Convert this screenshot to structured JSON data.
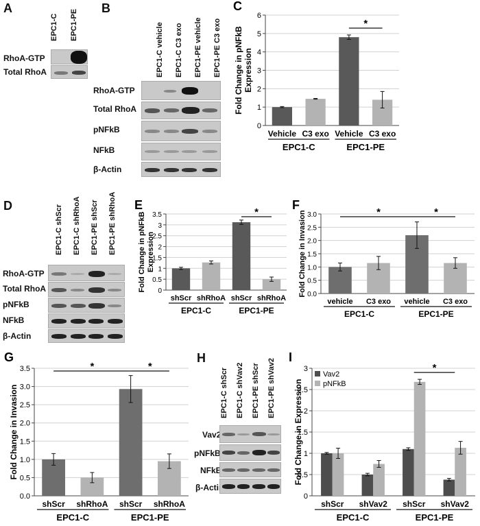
{
  "panels": {
    "A": {
      "label": "A",
      "lanes": [
        "EPC1-C",
        "EPC1-PE"
      ],
      "rows": [
        "RhoA-GTP",
        "Total RhoA"
      ]
    },
    "B": {
      "label": "B",
      "lanes": [
        "EPC1-C vehicle",
        "EPC1-C C3 exo",
        "EPC1-PE vehicle",
        "EPC1-PE C3 exo"
      ],
      "rows": [
        "RhoA-GTP",
        "Total RhoA",
        "pNFkB",
        "NFkB",
        "β-Actin"
      ]
    },
    "D": {
      "label": "D",
      "lanes": [
        "EPC1-C shScr",
        "EPC1-C shRhoA",
        "EPC1-PE shScr",
        "EPC1-PE shRhoA"
      ],
      "rows": [
        "RhoA-GTP",
        "Total RhoA",
        "pNFkB",
        "NFkB",
        "β-Actin"
      ]
    },
    "H": {
      "label": "H",
      "lanes": [
        "EPC1-C shScr",
        "EPC1-C shVav2",
        "EPC1-PE shScr",
        "EPC1-PE shVav2"
      ],
      "rows": [
        "Vav2",
        "pNFkB",
        "NFkB",
        "β-Actin"
      ]
    }
  },
  "chart_data": [
    {
      "id": "C",
      "label": "C",
      "type": "bar",
      "ylabel": "Fold Change in pNFkB Expression",
      "ylim": [
        0,
        6
      ],
      "yticks": [
        0,
        1,
        2,
        3,
        4,
        5,
        6
      ],
      "ytick_labels": [
        "0",
        "1",
        "2",
        "3",
        "4",
        "5",
        "6"
      ],
      "categories": [
        "Vehicle",
        "C3 exo",
        "Vehicle",
        "C3 exo"
      ],
      "groups": [
        "EPC1-C",
        "EPC1-PE"
      ],
      "values": [
        1.0,
        1.45,
        4.8,
        1.4
      ],
      "errors": [
        0.03,
        0.02,
        0.12,
        0.45
      ],
      "colors": [
        "#595959",
        "#b3b3b3",
        "#595959",
        "#b3b3b3"
      ],
      "significance": [
        {
          "from": 2,
          "to": 3,
          "mark": "*"
        }
      ],
      "grid": true
    },
    {
      "id": "E",
      "label": "E",
      "type": "bar",
      "ylabel": "Fold Change in pNFkB Expression",
      "ylim": [
        0,
        3.5
      ],
      "yticks": [
        0,
        0.5,
        1,
        1.5,
        2,
        2.5,
        3,
        3.5
      ],
      "ytick_labels": [
        "0",
        "0.5",
        "1",
        "1.5",
        "2",
        "2.5",
        "3",
        "3.5"
      ],
      "categories": [
        "shScr",
        "shRhoA",
        "shScr",
        "shRhoA"
      ],
      "groups": [
        "EPC1-C",
        "EPC1-PE"
      ],
      "values": [
        1.0,
        1.27,
        3.12,
        0.5
      ],
      "errors": [
        0.05,
        0.07,
        0.1,
        0.1
      ],
      "colors": [
        "#595959",
        "#b3b3b3",
        "#595959",
        "#b3b3b3"
      ],
      "significance": [
        {
          "from": 2,
          "to": 3,
          "mark": "*"
        }
      ],
      "grid": true
    },
    {
      "id": "F",
      "label": "F",
      "type": "bar",
      "ylabel": "Fold Change in Invasion",
      "ylim": [
        0,
        3.0
      ],
      "yticks": [
        0,
        0.5,
        1,
        1.5,
        2,
        2.5,
        3
      ],
      "ytick_labels": [
        "0.0",
        "0.5",
        "1.0",
        "1.5",
        "2.0",
        "2.5",
        "3.0"
      ],
      "categories": [
        "vehicle",
        "C3 exo",
        "vehicle",
        "C3 exo"
      ],
      "groups": [
        "EPC1-C",
        "EPC1-PE"
      ],
      "values": [
        1.0,
        1.15,
        2.2,
        1.15
      ],
      "errors": [
        0.15,
        0.25,
        0.5,
        0.2
      ],
      "colors": [
        "#6e6e6e",
        "#b3b3b3",
        "#6e6e6e",
        "#b3b3b3"
      ],
      "significance": [
        {
          "from": 0,
          "to": 2,
          "mark": "*"
        },
        {
          "from": 2,
          "to": 3,
          "mark": "*"
        }
      ],
      "grid": true
    },
    {
      "id": "G",
      "label": "G",
      "type": "bar",
      "ylabel": "Fold Change in Invasion",
      "ylim": [
        0,
        3.5
      ],
      "yticks": [
        0,
        0.5,
        1,
        1.5,
        2,
        2.5,
        3,
        3.5
      ],
      "ytick_labels": [
        "0.0",
        "0.5",
        "1.0",
        "1.5",
        "2.0",
        "2.5",
        "3.0",
        "3.5"
      ],
      "categories": [
        "shScr",
        "shRhoA",
        "shScr",
        "shRhoA"
      ],
      "groups": [
        "EPC1-C",
        "EPC1-PE"
      ],
      "values": [
        1.0,
        0.5,
        2.93,
        0.95
      ],
      "errors": [
        0.16,
        0.14,
        0.37,
        0.2
      ],
      "colors": [
        "#6e6e6e",
        "#b3b3b3",
        "#6e6e6e",
        "#b3b3b3"
      ],
      "significance": [
        {
          "from": 0,
          "to": 2,
          "mark": "*"
        },
        {
          "from": 2,
          "to": 3,
          "mark": "*"
        }
      ],
      "grid": true
    },
    {
      "id": "I",
      "label": "I",
      "type": "bar",
      "ylabel": "Fold Change in Expression",
      "ylim": [
        0,
        3
      ],
      "yticks": [
        0,
        0.5,
        1,
        1.5,
        2,
        2.5,
        3
      ],
      "ytick_labels": [
        "0",
        "0.5",
        "1",
        "1.5",
        "2",
        "2.5",
        "3"
      ],
      "categories": [
        "shScr",
        "shVav2",
        "shScr",
        "shVav2"
      ],
      "groups": [
        "EPC1-C",
        "EPC1-PE"
      ],
      "series": [
        {
          "name": "Vav2",
          "color": "#4d4d4d",
          "values": [
            1.0,
            0.5,
            1.1,
            0.38
          ],
          "errors": [
            0.02,
            0.03,
            0.03,
            0.03
          ]
        },
        {
          "name": "pNFkB",
          "color": "#b3b3b3",
          "values": [
            1.0,
            0.75,
            2.68,
            1.13
          ],
          "errors": [
            0.12,
            0.08,
            0.06,
            0.15
          ]
        }
      ],
      "legend": "top-left",
      "significance": [
        {
          "from": 2,
          "to": 3,
          "mark": "*"
        }
      ],
      "grid": true
    }
  ]
}
